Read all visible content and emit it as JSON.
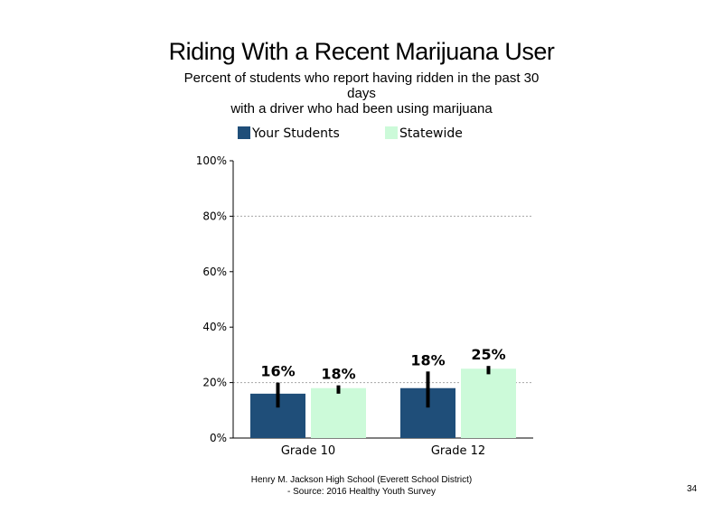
{
  "title": "Riding With a Recent Marijuana User",
  "subtitle_lines": [
    "Percent of students who report having ridden in the past 30",
    "days",
    "with a driver who had been using marijuana"
  ],
  "footer_lines": [
    "Henry M. Jackson High School (Everett School District)",
    "- Source: 2016 Healthy Youth Survey"
  ],
  "page_number": "34",
  "chart_data": {
    "type": "bar",
    "title": "Riding With a Recent Marijuana User",
    "categories": [
      "Grade 10",
      "Grade 12"
    ],
    "series": [
      {
        "name": "Your Students",
        "color": "#1f4e79",
        "values": [
          16,
          18
        ],
        "labels": [
          "16%",
          "18%"
        ],
        "error_low": [
          11,
          11
        ],
        "error_high": [
          20,
          24
        ]
      },
      {
        "name": "Statewide",
        "color": "#ccfad9",
        "values": [
          18,
          25
        ],
        "labels": [
          "18%",
          "25%"
        ],
        "error_low": [
          16,
          23
        ],
        "error_high": [
          19,
          26
        ]
      }
    ],
    "ylim": [
      0,
      100
    ],
    "yticks": [
      0,
      20,
      40,
      60,
      80,
      100
    ],
    "ytick_labels": [
      "0%",
      "20%",
      "40%",
      "60%",
      "80%",
      "100%"
    ],
    "gridlines": [
      20,
      80
    ],
    "legend_position": "top"
  }
}
